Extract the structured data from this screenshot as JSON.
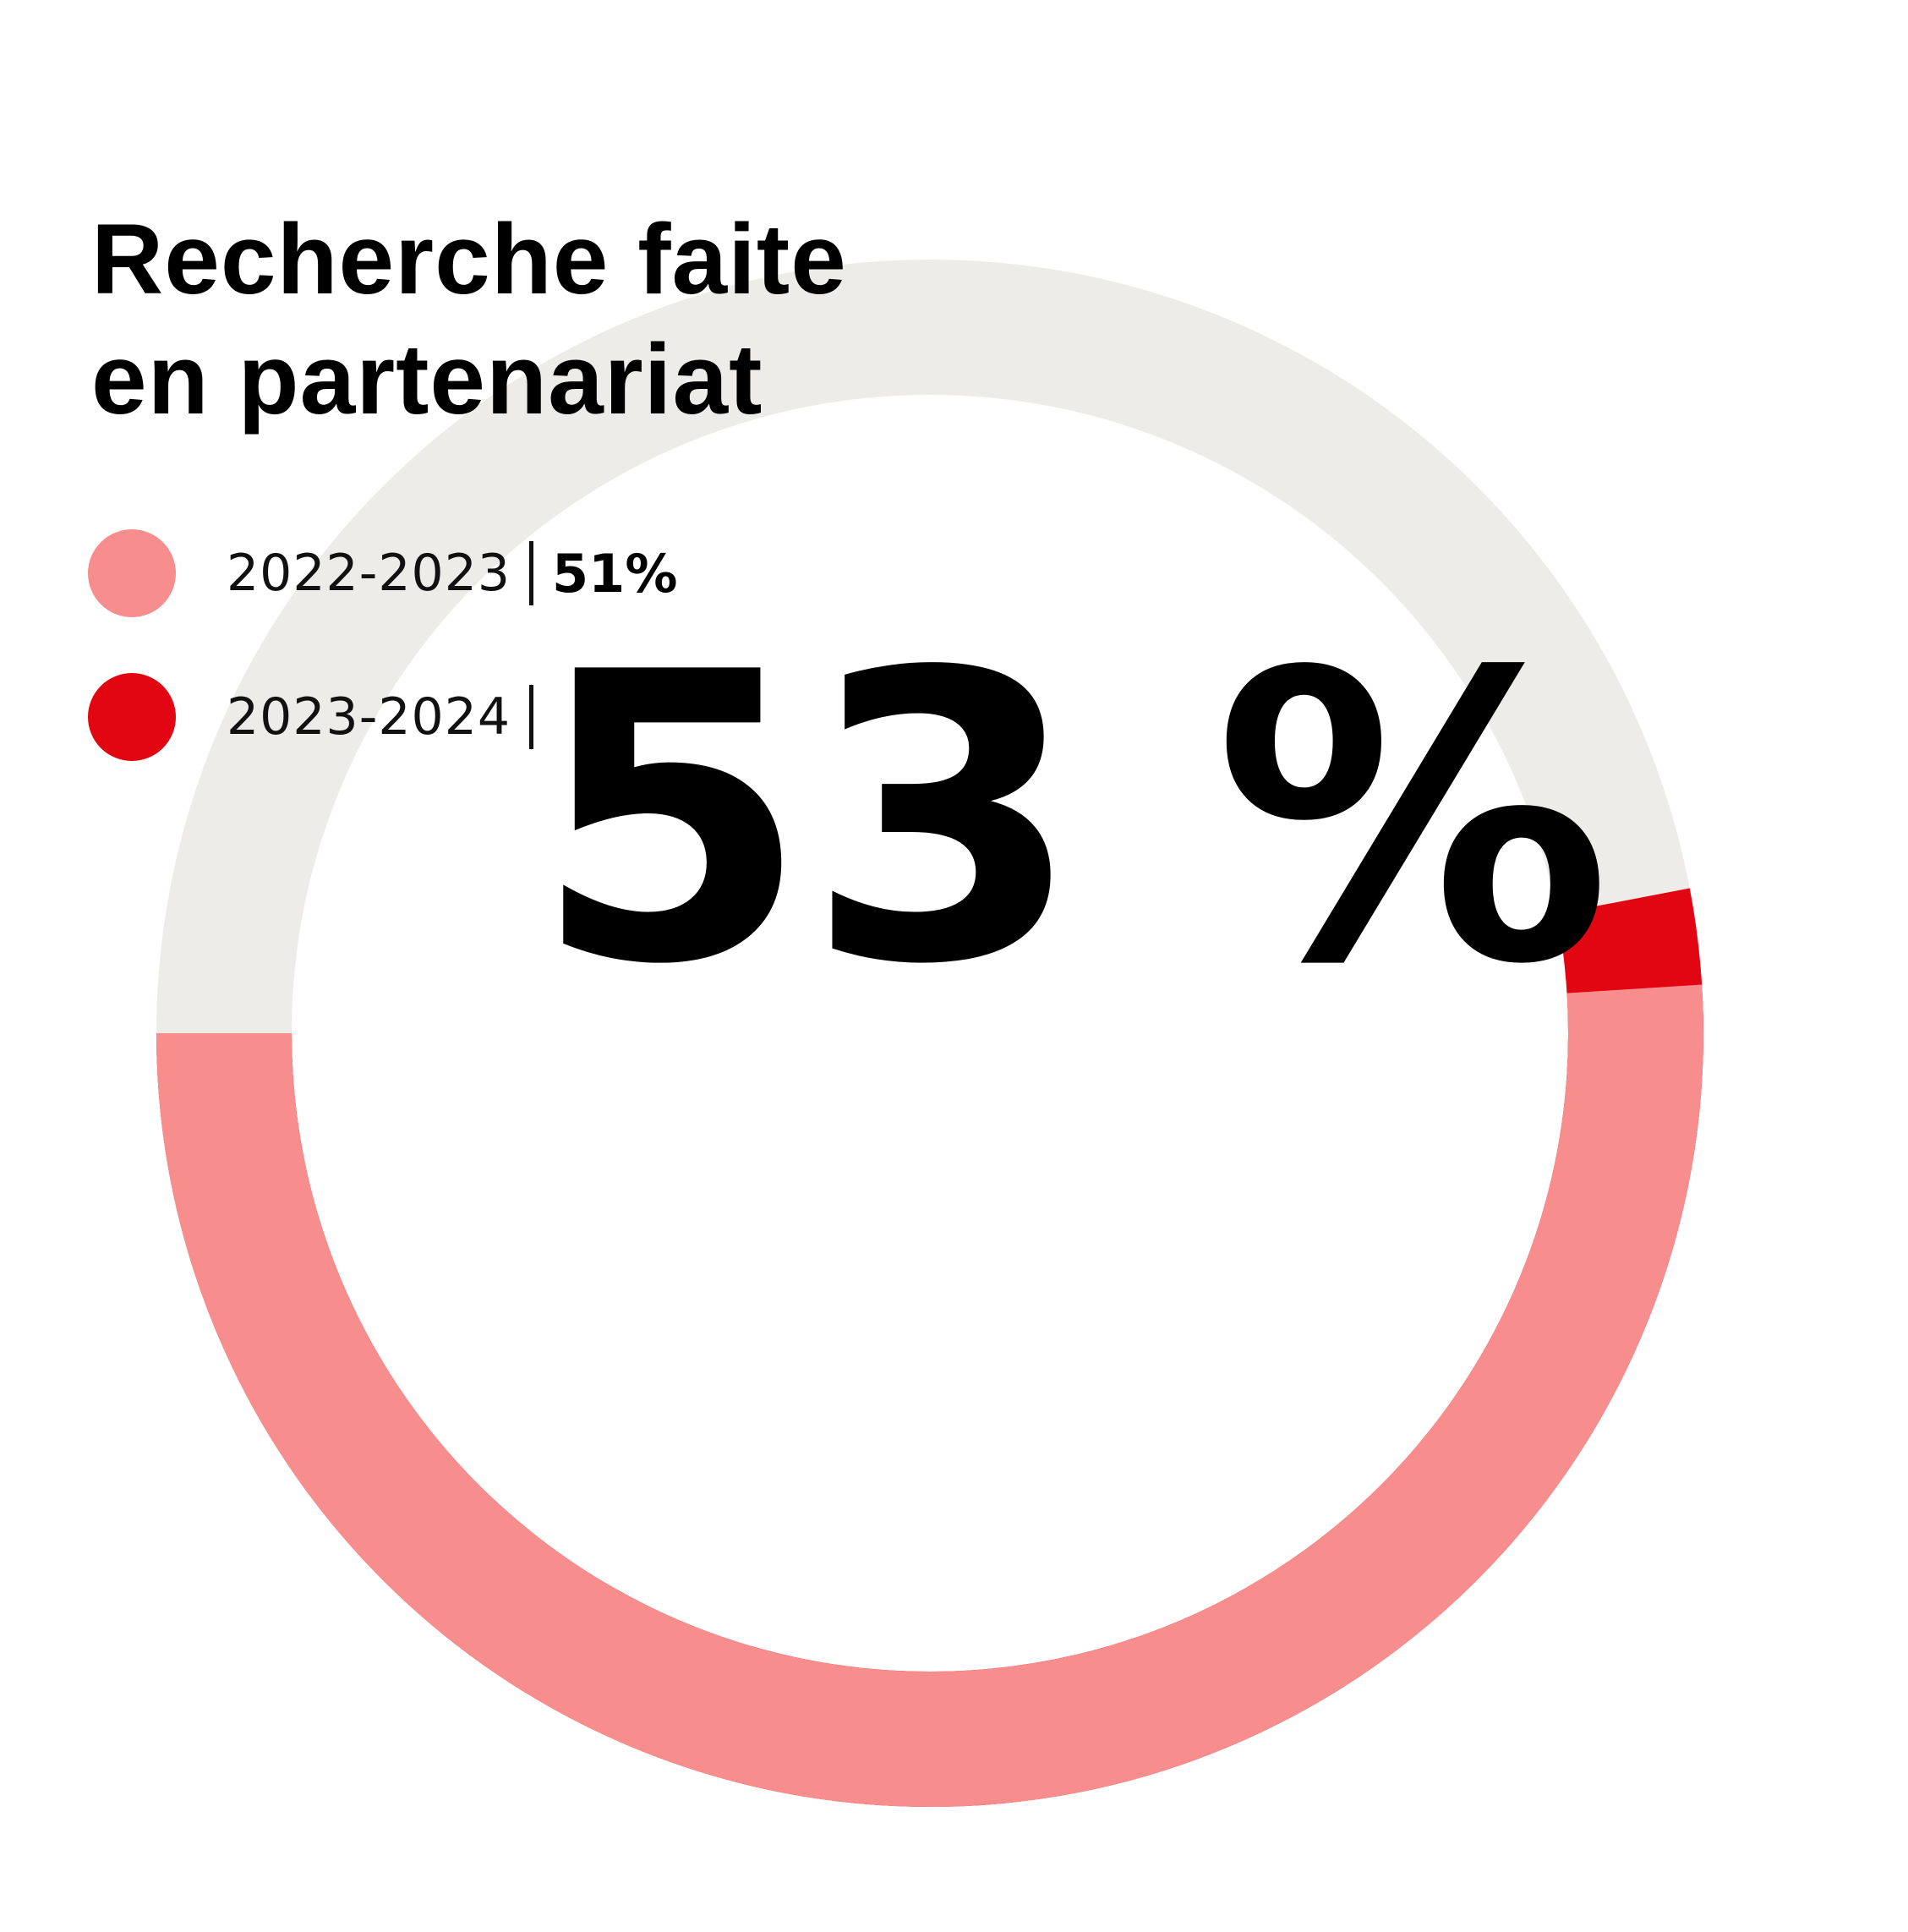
{
  "title_lines": [
    "Recherche faite",
    "en partenariat"
  ],
  "legend": [
    {
      "label": "2022-2023",
      "value": "51%",
      "color": "#f78d8d"
    },
    {
      "label": "2023-2024",
      "value": "",
      "color": "#e20613"
    }
  ],
  "headline_value": "53 %",
  "colors": {
    "track": "#edece8",
    "background": "#ffffff",
    "text": "#000000"
  },
  "chart_data": {
    "type": "pie",
    "variant": "donut",
    "title": "Recherche faite en partenariat",
    "series": [
      {
        "name": "2022-2023",
        "value": 51,
        "unit": "%",
        "color": "#f78d8d"
      },
      {
        "name": "2023-2024",
        "value": 53,
        "unit": "%",
        "color": "#e20613"
      }
    ],
    "total": 100,
    "start_angle": "9 o'clock, counter-clockwise",
    "legend_position": "top-left"
  }
}
